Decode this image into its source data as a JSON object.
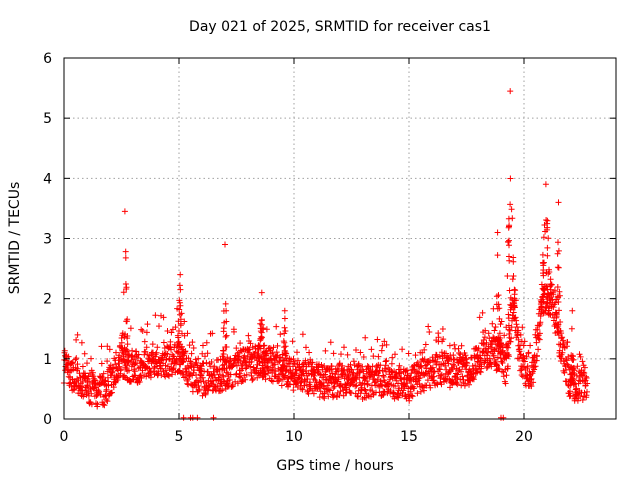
{
  "chart_data": {
    "type": "scatter",
    "title": "Day 021 of 2025, SRMTID for receiver cas1",
    "xlabel": "GPS time / hours",
    "ylabel": "SRMTID / TECUs",
    "xlim": [
      0,
      24
    ],
    "ylim": [
      0,
      6
    ],
    "xticks": [
      0,
      5,
      10,
      15,
      20
    ],
    "yticks": [
      0,
      1,
      2,
      3,
      4,
      5,
      6
    ],
    "grid": true,
    "marker": "+",
    "series": [
      {
        "name": "cas1",
        "color": "#ff0000",
        "trend": [
          [
            0,
            0.85
          ],
          [
            0.3,
            0.75
          ],
          [
            0.6,
            0.7
          ],
          [
            1.0,
            0.55
          ],
          [
            1.4,
            0.45
          ],
          [
            1.8,
            0.5
          ],
          [
            2.2,
            0.75
          ],
          [
            2.5,
            1.0
          ],
          [
            2.7,
            0.9
          ],
          [
            3.0,
            0.85
          ],
          [
            3.5,
            0.9
          ],
          [
            4.0,
            1.0
          ],
          [
            4.5,
            0.95
          ],
          [
            5.0,
            1.0
          ],
          [
            5.5,
            0.75
          ],
          [
            6.0,
            0.65
          ],
          [
            6.5,
            0.7
          ],
          [
            7.0,
            0.75
          ],
          [
            7.5,
            0.85
          ],
          [
            8.0,
            0.9
          ],
          [
            8.5,
            0.95
          ],
          [
            9.0,
            0.9
          ],
          [
            9.5,
            0.8
          ],
          [
            10.0,
            0.75
          ],
          [
            10.5,
            0.7
          ],
          [
            11.0,
            0.65
          ],
          [
            11.5,
            0.6
          ],
          [
            12.0,
            0.65
          ],
          [
            12.5,
            0.65
          ],
          [
            13.0,
            0.6
          ],
          [
            13.5,
            0.65
          ],
          [
            14.0,
            0.65
          ],
          [
            14.5,
            0.6
          ],
          [
            15.0,
            0.55
          ],
          [
            15.5,
            0.7
          ],
          [
            16.0,
            0.8
          ],
          [
            16.5,
            0.85
          ],
          [
            17.0,
            0.75
          ],
          [
            17.5,
            0.8
          ],
          [
            18.0,
            1.0
          ],
          [
            18.5,
            1.15
          ],
          [
            19.0,
            1.0
          ],
          [
            19.2,
            0.8
          ],
          [
            19.5,
            1.8
          ],
          [
            19.8,
            1.1
          ],
          [
            20.0,
            0.75
          ],
          [
            20.4,
            0.8
          ],
          [
            20.8,
            1.9
          ],
          [
            21.2,
            2.0
          ],
          [
            21.6,
            1.2
          ],
          [
            22.0,
            0.6
          ],
          [
            22.3,
            0.55
          ],
          [
            22.7,
            0.6
          ]
        ],
        "spikes": [
          {
            "x0": 2.5,
            "x1": 2.8,
            "peak": 3.45
          },
          {
            "x0": 4.9,
            "x1": 5.2,
            "peak": 2.4
          },
          {
            "x0": 6.9,
            "x1": 7.1,
            "peak": 2.9
          },
          {
            "x0": 8.4,
            "x1": 8.8,
            "peak": 2.1
          },
          {
            "x0": 9.5,
            "x1": 9.7,
            "peak": 1.8
          },
          {
            "x0": 18.7,
            "x1": 19.0,
            "peak": 3.1
          },
          {
            "x0": 19.2,
            "x1": 19.6,
            "peak": 5.45
          },
          {
            "x0": 20.7,
            "x1": 21.2,
            "peak": 3.9
          },
          {
            "x0": 21.4,
            "x1": 21.6,
            "peak": 3.6
          },
          {
            "x0": 22.0,
            "x1": 22.2,
            "peak": 1.8
          }
        ],
        "zero_points": [
          5.2,
          5.5,
          5.6,
          5.8,
          6.5,
          19.0,
          19.1
        ]
      }
    ]
  }
}
